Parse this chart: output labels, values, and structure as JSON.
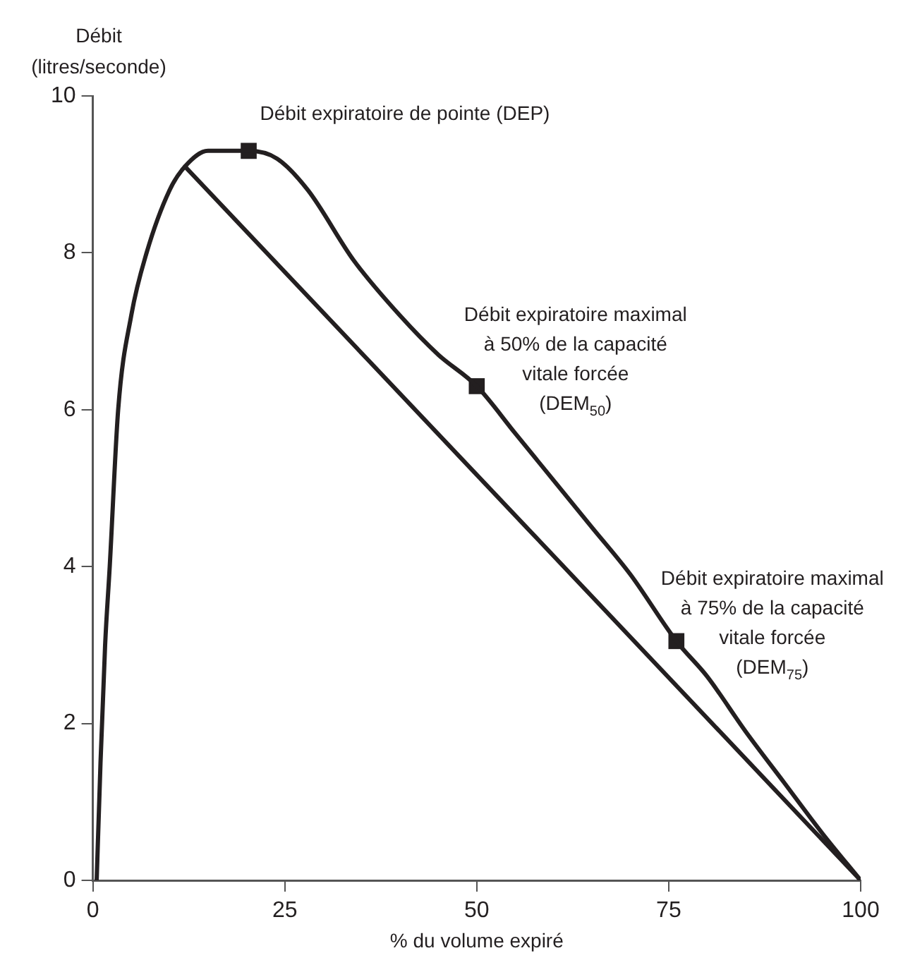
{
  "chart_data": {
    "type": "line",
    "xlabel": "% du volume expiré",
    "ylabel": "Débit\n(litres/seconde)",
    "xlim": [
      0,
      100
    ],
    "xticks": [
      0,
      25,
      50,
      75,
      100
    ],
    "ylim": [
      0,
      10
    ],
    "yticks": [
      0,
      2,
      4,
      6,
      8,
      10
    ],
    "grid": false,
    "legend": false,
    "series": [
      {
        "color": "#231f20",
        "line_style": "solid",
        "marker": "none",
        "x": [
          0.5,
          1,
          1.6,
          2.2,
          3.3,
          5,
          7,
          10,
          12,
          15,
          20.3,
          24,
          28,
          34,
          40,
          45,
          50,
          55,
          60,
          65,
          70,
          76,
          80,
          85,
          90,
          95,
          100
        ],
        "values": [
          0,
          1.5,
          3,
          4,
          6,
          7.2,
          8,
          8.8,
          9.1,
          9.3,
          9.3,
          9.2,
          8.8,
          7.9,
          7.2,
          6.7,
          6.3,
          5.7,
          5.1,
          4.5,
          3.9,
          3.05,
          2.6,
          1.9,
          1.25,
          0.6,
          0
        ]
      },
      {
        "color": "#231f20",
        "line_style": "solid",
        "marker": "none",
        "x": [
          12,
          100
        ],
        "values": [
          9.1,
          0
        ]
      },
      {
        "type": "scatter",
        "color": "#231f20",
        "marker": "square",
        "x": [
          20.3,
          50,
          76
        ],
        "values": [
          9.3,
          6.3,
          3.05
        ]
      }
    ],
    "annotations": [
      {
        "text": "Débit expiratoire de pointe (DEP)",
        "x": 20.3,
        "y": 9.3
      },
      {
        "text": "Débit expiratoire maximal\nà 50% de la capacité\nvitale forcée\n(DEM$_{50}$)",
        "x": 50,
        "y": 6.3
      },
      {
        "text": "Débit expiratoire maximal\nà 75% de la capacité\nvitale forcée\n(DEM$_{75}$)",
        "x": 76,
        "y": 3.05
      }
    ]
  }
}
